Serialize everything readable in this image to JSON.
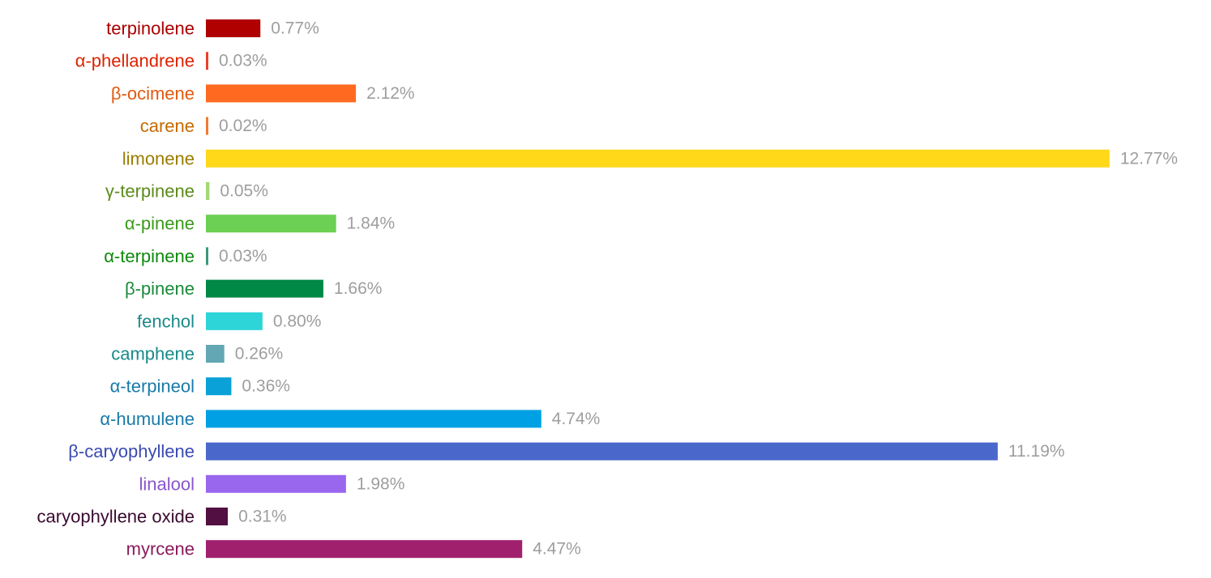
{
  "chart_data": {
    "type": "bar",
    "orientation": "horizontal",
    "value_suffix": "%",
    "categories": [
      "terpinolene",
      "α-phellandrene",
      "β-ocimene",
      "carene",
      "limonene",
      "γ-terpinene",
      "α-pinene",
      "α-terpinene",
      "β-pinene",
      "fenchol",
      "camphene",
      "α-terpineol",
      "α-humulene",
      "β-caryophyllene",
      "linalool",
      "caryophyllene oxide",
      "myrcene"
    ],
    "values": [
      0.77,
      0.03,
      2.12,
      0.02,
      12.77,
      0.05,
      1.84,
      0.03,
      1.66,
      0.8,
      0.26,
      0.36,
      4.74,
      11.19,
      1.98,
      0.31,
      4.47
    ],
    "value_labels": [
      "0.77%",
      "0.03%",
      "2.12%",
      "0.02%",
      "12.77%",
      "0.05%",
      "1.84%",
      "0.03%",
      "1.66%",
      "0.80%",
      "0.26%",
      "0.36%",
      "4.74%",
      "11.19%",
      "1.98%",
      "0.31%",
      "4.47%"
    ],
    "bar_colors": [
      "#b00000",
      "#e8402a",
      "#ff6a20",
      "#f07a30",
      "#ffd81a",
      "#a3d873",
      "#6bd053",
      "#3a9a77",
      "#008845",
      "#2dd4d8",
      "#63a6b4",
      "#0aa0d8",
      "#00a0e4",
      "#4a68cc",
      "#9966ee",
      "#520f41",
      "#a0206e"
    ],
    "label_colors": [
      "#aa0000",
      "#dd2200",
      "#e05a10",
      "#c56c00",
      "#9a7c00",
      "#5c8a1a",
      "#3a9a1a",
      "#0e8a0e",
      "#1a8a3a",
      "#1a8a8a",
      "#1a8a8a",
      "#1a7aaa",
      "#1a7aaa",
      "#3a4ab0",
      "#8855cc",
      "#3a0a30",
      "#8a1a5c"
    ],
    "title": "",
    "xlabel": "",
    "ylabel": "",
    "grid": false,
    "legend": false
  }
}
